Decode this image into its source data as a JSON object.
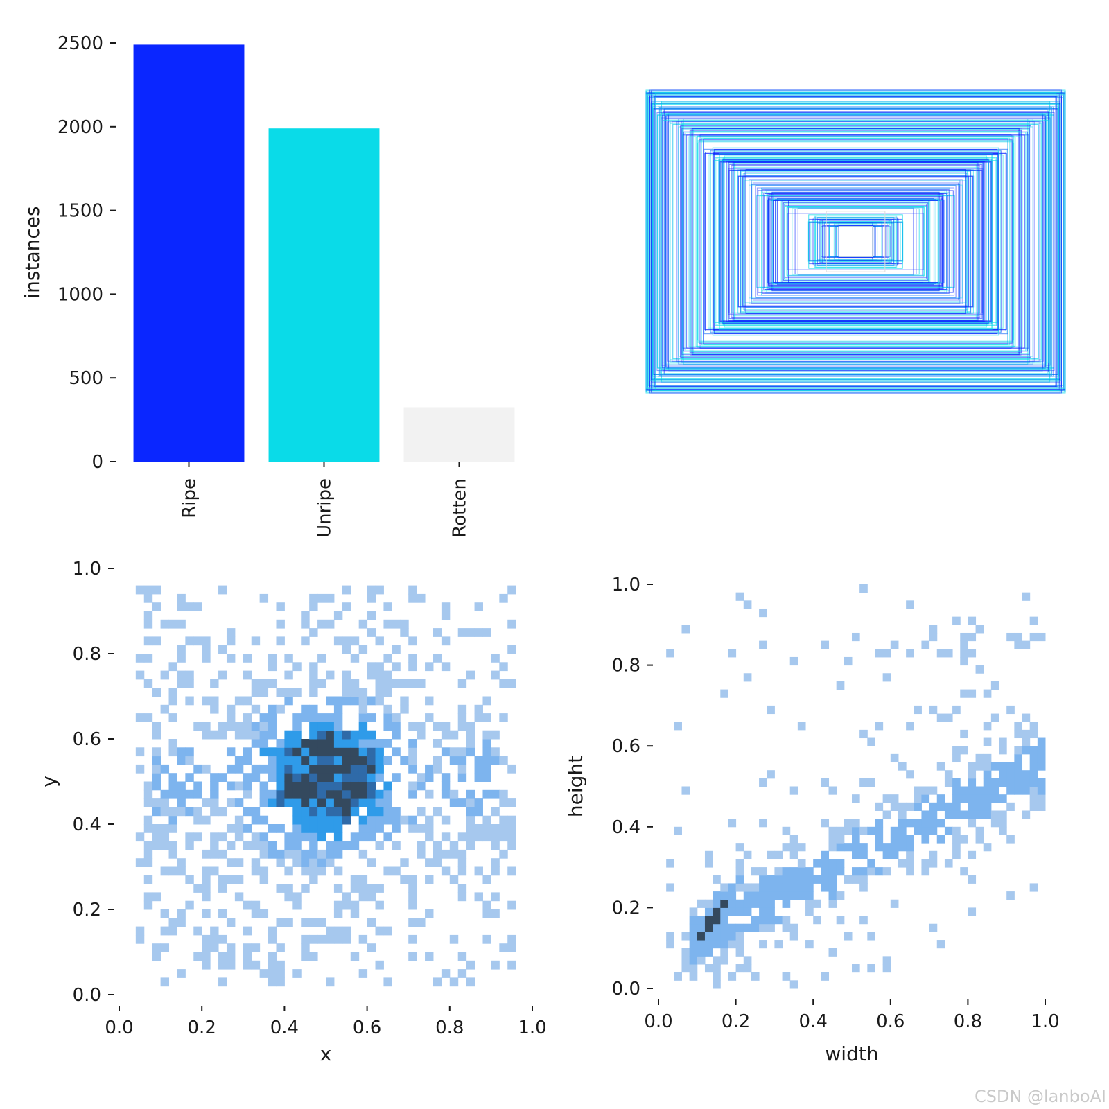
{
  "watermark": "CSDN @lanboAI",
  "chart_data": [
    {
      "type": "bar",
      "categories": [
        "Ripe",
        "Unripe",
        "Rotten"
      ],
      "values": [
        2490,
        1990,
        325
      ],
      "colors": [
        "#0a26ff",
        "#0adbe8",
        "#f2f2f2"
      ],
      "ylabel": "instances",
      "ylim": [
        0,
        2500
      ],
      "yticks": [
        0,
        500,
        1000,
        1500,
        2000,
        2500
      ],
      "ytick_labels": [
        "0",
        "500",
        "1000",
        "1500",
        "2000",
        "2500"
      ],
      "grid": false
    },
    {
      "type": "boxes",
      "description_colors": [
        "#0a26ff",
        "#0adbe8"
      ],
      "center": [
        0.5,
        0.5
      ],
      "boxes": [
        [
          1.0,
          1.0
        ],
        [
          0.98,
          0.97
        ],
        [
          0.95,
          0.9
        ],
        [
          0.92,
          0.85
        ],
        [
          0.9,
          0.8
        ],
        [
          0.85,
          0.78
        ],
        [
          0.8,
          0.72
        ],
        [
          0.75,
          0.68
        ],
        [
          0.7,
          0.6
        ],
        [
          0.65,
          0.55
        ],
        [
          0.6,
          0.5
        ],
        [
          0.55,
          0.45
        ],
        [
          0.5,
          0.4
        ],
        [
          0.45,
          0.33
        ],
        [
          0.4,
          0.3
        ],
        [
          0.35,
          0.25
        ],
        [
          0.3,
          0.2
        ],
        [
          0.2,
          0.15
        ],
        [
          0.15,
          0.12
        ],
        [
          0.08,
          0.1
        ]
      ]
    },
    {
      "type": "heatmap",
      "xlabel": "x",
      "ylabel": "y",
      "xlim": [
        0,
        1
      ],
      "ylim": [
        0,
        1
      ],
      "xticks": [
        0.0,
        0.2,
        0.4,
        0.6,
        0.8,
        1.0
      ],
      "xtick_labels": [
        "0.0",
        "0.2",
        "0.4",
        "0.6",
        "0.8",
        "1.0"
      ],
      "yticks": [
        0.0,
        0.2,
        0.4,
        0.6,
        0.8,
        1.0
      ],
      "ytick_labels": [
        "0.0",
        "0.2",
        "0.4",
        "0.6",
        "0.8",
        "1.0"
      ],
      "data_extent": [
        0.05,
        0.96,
        0.03,
        0.96
      ],
      "hotspots": [
        {
          "x": 0.5,
          "y": 0.51,
          "sx": 0.09,
          "sy": 0.09,
          "w": 1.0
        },
        {
          "x": 0.12,
          "y": 0.5,
          "sx": 0.06,
          "sy": 0.08,
          "w": 0.35
        },
        {
          "x": 0.88,
          "y": 0.5,
          "sx": 0.06,
          "sy": 0.08,
          "w": 0.35
        },
        {
          "x": 0.5,
          "y": 0.5,
          "sx": 0.3,
          "sy": 0.22,
          "w": 0.45
        }
      ]
    },
    {
      "type": "heatmap",
      "xlabel": "width",
      "ylabel": "height",
      "xlim": [
        0,
        1
      ],
      "ylim": [
        0,
        1
      ],
      "xticks": [
        0.0,
        0.2,
        0.4,
        0.6,
        0.8,
        1.0
      ],
      "xtick_labels": [
        "0.0",
        "0.2",
        "0.4",
        "0.6",
        "0.8",
        "1.0"
      ],
      "yticks": [
        0.0,
        0.2,
        0.4,
        0.6,
        0.8,
        1.0
      ],
      "ytick_labels": [
        "0.0",
        "0.2",
        "0.4",
        "0.6",
        "0.8",
        "1.0"
      ],
      "data_extent": [
        0.0,
        1.0,
        0.03,
        0.99
      ],
      "peak": {
        "x": 0.14,
        "y": 0.17
      }
    }
  ]
}
